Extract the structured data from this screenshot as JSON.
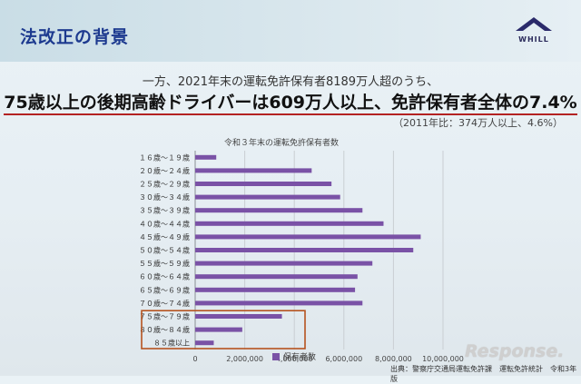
{
  "slide": {
    "title": "法改正の背景",
    "logo_text": "WHILL",
    "intro": "一方、2021年末の運転免許保有者8189万人超のうち、",
    "headline": "75歳以上の後期高齢ドライバーは609万人以上、免許保有者全体の7.4%",
    "compare": "（2011年比：374万人以上、4.6%）",
    "source": "出典：警察庁交通局運転免許課　運転免許統計　令和3年版",
    "watermark": "Response."
  },
  "colors": {
    "bar": "#7a52a6",
    "highlight": "#b5531f",
    "title": "#1d3a8f",
    "underline": "#b32222"
  },
  "chart_data": {
    "type": "bar",
    "orientation": "horizontal",
    "title": "令和３年末の運転免許保有者数",
    "categories": [
      "１６歳～１９歳",
      "２０歳～２４歳",
      "２５歳～２９歳",
      "３０歳～３４歳",
      "３５歳～３９歳",
      "４０歳～４４歳",
      "４５歳～４９歳",
      "５０歳～５４歳",
      "５５歳～５９歳",
      "６０歳～６４歳",
      "６５歳～６９歳",
      "７０歳～７４歳",
      "７５歳～７９歳",
      "８０歳～８４歳",
      "８５歳以上"
    ],
    "series": [
      {
        "name": "保有者数",
        "values": [
          850000,
          4700000,
          5500000,
          5850000,
          6750000,
          7600000,
          9100000,
          8800000,
          7150000,
          6550000,
          6450000,
          6750000,
          3500000,
          1900000,
          750000
        ]
      }
    ],
    "x_ticks": [
      "0",
      "2,000,000",
      "4,000,000",
      "6,000,000",
      "8,000,000",
      "10,000,000"
    ],
    "x_tick_values": [
      0,
      2000000,
      4000000,
      6000000,
      8000000,
      10000000
    ],
    "xlim": [
      0,
      10000000
    ],
    "grid": true,
    "legend": "bottom",
    "highlight_categories": [
      "７５歳～７９歳",
      "８０歳～８４歳",
      "８５歳以上"
    ]
  }
}
